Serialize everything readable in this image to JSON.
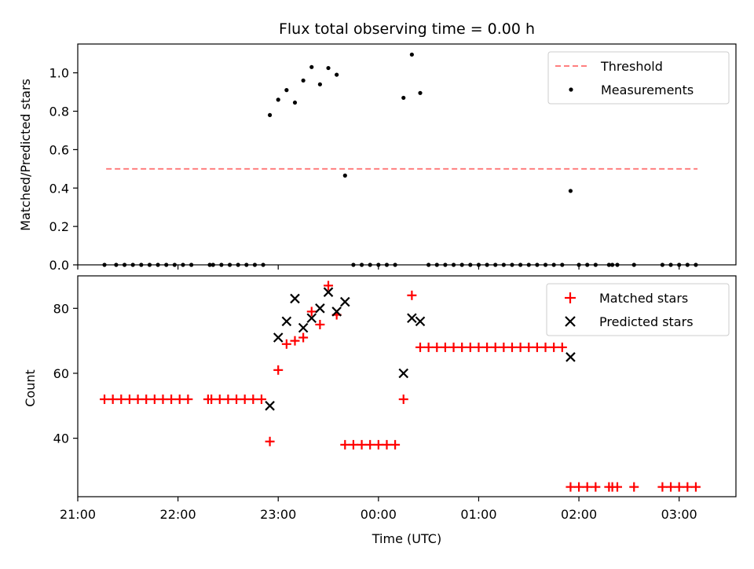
{
  "chart_data": [
    {
      "type": "scatter",
      "title": "Flux total observing time = 0.00 h",
      "xlabel": "",
      "ylabel": "Matched/Predicted stars",
      "ylim": [
        0,
        1.15
      ],
      "yticks": [
        "0.0",
        "0.2",
        "0.4",
        "0.6",
        "0.8",
        "1.0"
      ],
      "grid": false,
      "legend_position": "top-right",
      "threshold": {
        "name": "Threshold",
        "value": 0.5,
        "x_range": [
          "21:17",
          "03:11"
        ],
        "color": "#ff7f7f"
      },
      "series": [
        {
          "name": "Measurements",
          "color": "#000000",
          "points": [
            [
              "21:16",
              0
            ],
            [
              "21:23",
              0
            ],
            [
              "21:28",
              0
            ],
            [
              "21:33",
              0
            ],
            [
              "21:38",
              0
            ],
            [
              "21:43",
              0
            ],
            [
              "21:48",
              0
            ],
            [
              "21:53",
              0
            ],
            [
              "21:58",
              0
            ],
            [
              "22:03",
              0
            ],
            [
              "22:08",
              0
            ],
            [
              "22:19",
              0
            ],
            [
              "22:21",
              0
            ],
            [
              "22:26",
              0
            ],
            [
              "22:31",
              0
            ],
            [
              "22:36",
              0
            ],
            [
              "22:41",
              0
            ],
            [
              "22:46",
              0
            ],
            [
              "22:51",
              0
            ],
            [
              "22:55",
              0.78
            ],
            [
              "23:00",
              0.86
            ],
            [
              "23:05",
              0.91
            ],
            [
              "23:10",
              0.845
            ],
            [
              "23:15",
              0.96
            ],
            [
              "23:20",
              1.03
            ],
            [
              "23:25",
              0.94
            ],
            [
              "23:30",
              1.025
            ],
            [
              "23:35",
              0.99
            ],
            [
              "23:40",
              0.465
            ],
            [
              "23:45",
              0
            ],
            [
              "23:50",
              0
            ],
            [
              "23:55",
              0
            ],
            [
              "00:00",
              0
            ],
            [
              "00:05",
              0
            ],
            [
              "00:10",
              0
            ],
            [
              "00:15",
              0.87
            ],
            [
              "00:20",
              1.095
            ],
            [
              "00:25",
              0.895
            ],
            [
              "00:30",
              0
            ],
            [
              "00:35",
              0
            ],
            [
              "00:40",
              0
            ],
            [
              "00:45",
              0
            ],
            [
              "00:50",
              0
            ],
            [
              "00:55",
              0
            ],
            [
              "01:00",
              0
            ],
            [
              "01:05",
              0
            ],
            [
              "01:10",
              0
            ],
            [
              "01:15",
              0
            ],
            [
              "01:20",
              0
            ],
            [
              "01:25",
              0
            ],
            [
              "01:30",
              0
            ],
            [
              "01:35",
              0
            ],
            [
              "01:40",
              0
            ],
            [
              "01:45",
              0
            ],
            [
              "01:50",
              0
            ],
            [
              "01:55",
              0.385
            ],
            [
              "02:00",
              0
            ],
            [
              "02:05",
              0
            ],
            [
              "02:10",
              0
            ],
            [
              "02:18",
              0
            ],
            [
              "02:20",
              0
            ],
            [
              "02:23",
              0
            ],
            [
              "02:33",
              0
            ],
            [
              "02:50",
              0
            ],
            [
              "02:55",
              0
            ],
            [
              "03:00",
              0
            ],
            [
              "03:05",
              0
            ],
            [
              "03:10",
              0
            ]
          ]
        }
      ]
    },
    {
      "type": "scatter",
      "title": "",
      "xlabel": "Time (UTC)",
      "ylabel": "Count",
      "ylim": [
        22,
        90
      ],
      "yticks": [
        "40",
        "60",
        "80"
      ],
      "xticks": [
        "21:00",
        "22:00",
        "23:00",
        "00:00",
        "01:00",
        "02:00",
        "03:00"
      ],
      "grid": false,
      "legend_position": "top-right",
      "series": [
        {
          "name": "Matched stars",
          "color": "#ff0000",
          "marker": "+",
          "points": [
            [
              "21:16",
              52
            ],
            [
              "21:21",
              52
            ],
            [
              "21:26",
              52
            ],
            [
              "21:31",
              52
            ],
            [
              "21:36",
              52
            ],
            [
              "21:41",
              52
            ],
            [
              "21:46",
              52
            ],
            [
              "21:51",
              52
            ],
            [
              "21:56",
              52
            ],
            [
              "22:01",
              52
            ],
            [
              "22:06",
              52
            ],
            [
              "22:18",
              52
            ],
            [
              "22:20",
              52
            ],
            [
              "22:25",
              52
            ],
            [
              "22:30",
              52
            ],
            [
              "22:35",
              52
            ],
            [
              "22:40",
              52
            ],
            [
              "22:45",
              52
            ],
            [
              "22:50",
              52
            ],
            [
              "22:55",
              39
            ],
            [
              "23:00",
              61
            ],
            [
              "23:05",
              69
            ],
            [
              "23:10",
              70
            ],
            [
              "23:15",
              71
            ],
            [
              "23:20",
              79
            ],
            [
              "23:25",
              75
            ],
            [
              "23:30",
              87
            ],
            [
              "23:35",
              78
            ],
            [
              "23:40",
              38
            ],
            [
              "23:45",
              38
            ],
            [
              "23:50",
              38
            ],
            [
              "23:55",
              38
            ],
            [
              "00:00",
              38
            ],
            [
              "00:05",
              38
            ],
            [
              "00:10",
              38
            ],
            [
              "00:15",
              52
            ],
            [
              "00:20",
              84
            ],
            [
              "00:25",
              68
            ],
            [
              "00:30",
              68
            ],
            [
              "00:35",
              68
            ],
            [
              "00:40",
              68
            ],
            [
              "00:45",
              68
            ],
            [
              "00:50",
              68
            ],
            [
              "00:55",
              68
            ],
            [
              "01:00",
              68
            ],
            [
              "01:05",
              68
            ],
            [
              "01:10",
              68
            ],
            [
              "01:15",
              68
            ],
            [
              "01:20",
              68
            ],
            [
              "01:25",
              68
            ],
            [
              "01:30",
              68
            ],
            [
              "01:35",
              68
            ],
            [
              "01:40",
              68
            ],
            [
              "01:45",
              68
            ],
            [
              "01:50",
              68
            ],
            [
              "01:55",
              25
            ],
            [
              "02:00",
              25
            ],
            [
              "02:05",
              25
            ],
            [
              "02:10",
              25
            ],
            [
              "02:18",
              25
            ],
            [
              "02:20",
              25
            ],
            [
              "02:23",
              25
            ],
            [
              "02:33",
              25
            ],
            [
              "02:50",
              25
            ],
            [
              "02:55",
              25
            ],
            [
              "03:00",
              25
            ],
            [
              "03:05",
              25
            ],
            [
              "03:10",
              25
            ]
          ]
        },
        {
          "name": "Predicted stars",
          "color": "#000000",
          "marker": "x",
          "points": [
            [
              "22:55",
              50
            ],
            [
              "23:00",
              71
            ],
            [
              "23:05",
              76
            ],
            [
              "23:10",
              83
            ],
            [
              "23:15",
              74
            ],
            [
              "23:20",
              77
            ],
            [
              "23:25",
              80
            ],
            [
              "23:30",
              85
            ],
            [
              "23:35",
              79
            ],
            [
              "23:40",
              82
            ],
            [
              "00:15",
              60
            ],
            [
              "00:20",
              77
            ],
            [
              "00:25",
              76
            ],
            [
              "01:55",
              65
            ]
          ]
        }
      ]
    }
  ]
}
